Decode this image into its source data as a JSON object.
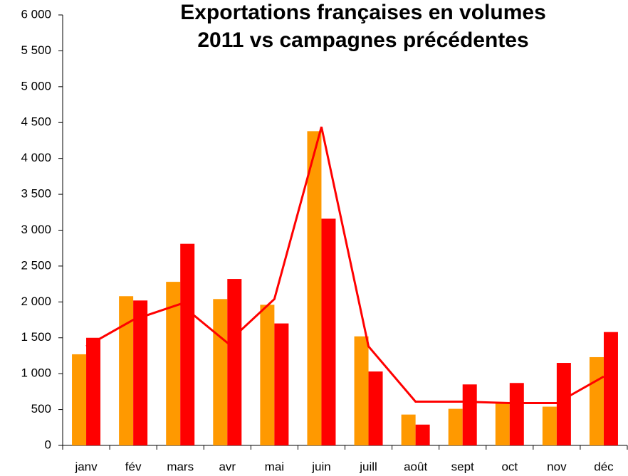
{
  "chart_data": {
    "type": "bar_line",
    "title": [
      "Exportations françaises en volumes",
      "2011 vs campagnes précédentes"
    ],
    "categories": [
      "janv",
      "fév",
      "mars",
      "avr",
      "mai",
      "juin",
      "juill",
      "août",
      "sept",
      "oct",
      "nov",
      "déc"
    ],
    "series": [
      {
        "type": "bar",
        "color": "#ff9900",
        "values": [
          1270,
          2080,
          2280,
          2040,
          1960,
          4380,
          1520,
          430,
          510,
          590,
          540,
          1230
        ]
      },
      {
        "type": "bar",
        "color": "#ff0000",
        "values": [
          1500,
          2020,
          2810,
          2320,
          1700,
          3160,
          1030,
          290,
          850,
          870,
          1150,
          1580
        ]
      },
      {
        "type": "line",
        "color": "#ff0000",
        "values": [
          1380,
          1750,
          1970,
          1430,
          2040,
          4440,
          1380,
          610,
          610,
          590,
          590,
          960
        ]
      }
    ],
    "ylim": [
      0,
      6000
    ],
    "yticks": [
      0,
      500,
      {
        "value": 1000,
        "label": "1 000"
      },
      {
        "value": 1500,
        "label": "1 500"
      },
      {
        "value": 2000,
        "label": "2 000"
      },
      {
        "value": 2500,
        "label": "2 500"
      },
      {
        "value": 3000,
        "label": "3 000"
      },
      {
        "value": 3500,
        "label": "3 500"
      },
      {
        "value": 4000,
        "label": "4 000"
      },
      {
        "value": 4500,
        "label": "4 500"
      },
      {
        "value": 5000,
        "label": "5 000"
      },
      {
        "value": 5500,
        "label": "5 500"
      },
      {
        "value": 6000,
        "label": "6 000"
      }
    ],
    "grid": false
  }
}
